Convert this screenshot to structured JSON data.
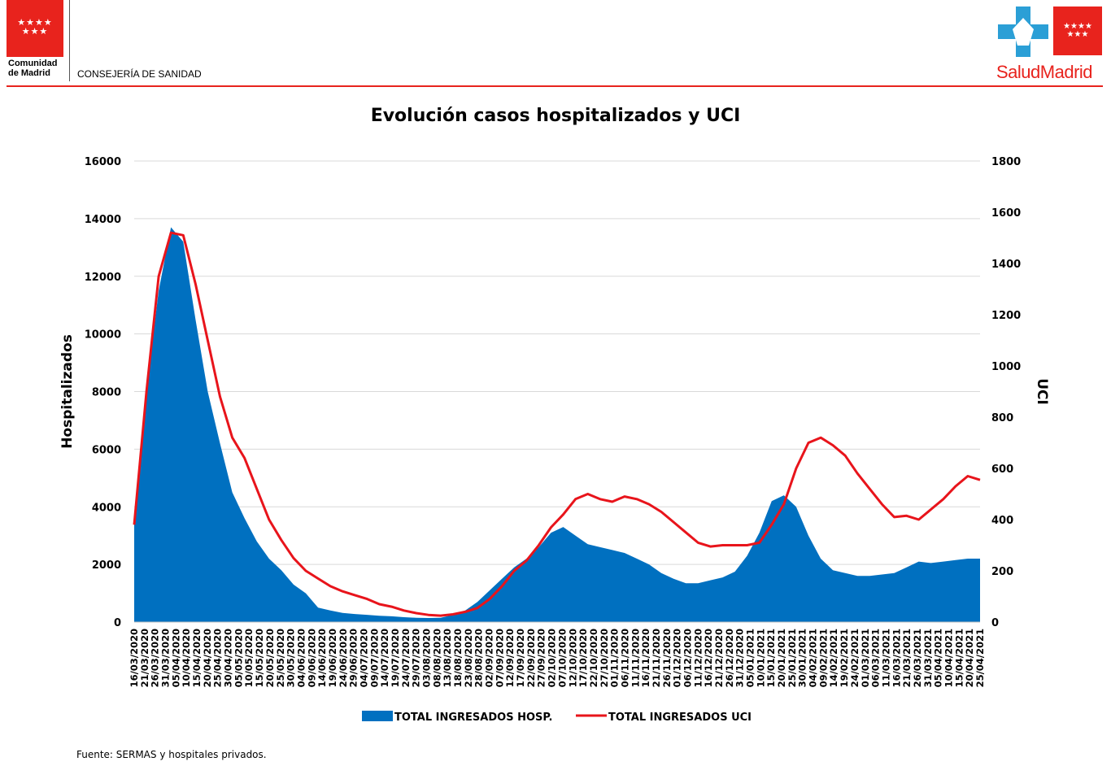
{
  "header": {
    "org_name": "Comunidad\nde Madrid",
    "department": "CONSEJERÍA DE SANIDAD",
    "logo_text": "SaludMadrid",
    "stars_left": "★★★★\n★★★",
    "stars_right": "★★★★\n★★★",
    "colors": {
      "brand_red": "#e8231d",
      "brand_blue": "#2b9fd6"
    }
  },
  "source_note": "Fuente: SERMAS y hospitales privados.",
  "chart_data": {
    "type": "area",
    "title": "Evolución casos hospitalizados y UCI",
    "ylabel": "Hospitalizados",
    "y2label": "UCI",
    "ylim": [
      0,
      16000
    ],
    "y2lim": [
      0,
      1800
    ],
    "yticks": [
      "0",
      "2000",
      "4000",
      "6000",
      "8000",
      "10000",
      "12000",
      "14000",
      "16000"
    ],
    "y2ticks": [
      "0",
      "200",
      "400",
      "600",
      "800",
      "1000",
      "1200",
      "1400",
      "1600",
      "1800"
    ],
    "grid": true,
    "legend_position": "bottom",
    "xticks": [
      "16/03/2020",
      "21/03/2020",
      "26/03/2020",
      "31/03/2020",
      "05/04/2020",
      "10/04/2020",
      "15/04/2020",
      "20/04/2020",
      "25/04/2020",
      "30/04/2020",
      "05/05/2020",
      "10/05/2020",
      "15/05/2020",
      "20/05/2020",
      "25/05/2020",
      "30/05/2020",
      "04/06/2020",
      "09/06/2020",
      "14/06/2020",
      "19/06/2020",
      "24/06/2020",
      "29/06/2020",
      "04/07/2020",
      "09/07/2020",
      "14/07/2020",
      "19/07/2020",
      "24/07/2020",
      "29/07/2020",
      "03/08/2020",
      "08/08/2020",
      "13/08/2020",
      "18/08/2020",
      "23/08/2020",
      "28/08/2020",
      "02/09/2020",
      "07/09/2020",
      "12/09/2020",
      "17/09/2020",
      "22/09/2020",
      "27/09/2020",
      "02/10/2020",
      "07/10/2020",
      "12/10/2020",
      "17/10/2020",
      "22/10/2020",
      "27/10/2020",
      "01/11/2020",
      "06/11/2020",
      "11/11/2020",
      "16/11/2020",
      "21/11/2020",
      "26/11/2020",
      "01/12/2020",
      "06/12/2020",
      "11/12/2020",
      "16/12/2020",
      "21/12/2020",
      "26/12/2020",
      "31/12/2020",
      "05/01/2021",
      "10/01/2021",
      "15/01/2021",
      "20/01/2021",
      "25/01/2021",
      "30/01/2021",
      "04/02/2021",
      "09/02/2021",
      "14/02/2021",
      "19/02/2021",
      "24/02/2021",
      "01/03/2021",
      "06/03/2021",
      "11/03/2021",
      "16/03/2021",
      "21/03/2021",
      "26/03/2021",
      "31/03/2021",
      "05/04/2021",
      "10/04/2021",
      "15/04/2021",
      "20/04/2021",
      "25/04/2021"
    ],
    "series": [
      {
        "name": "TOTAL INGRESADOS HOSP.",
        "axis": "left",
        "color": "#0070c0",
        "values": [
          3500,
          8000,
          11500,
          13700,
          13200,
          10500,
          8000,
          6200,
          4500,
          3600,
          2800,
          2200,
          1800,
          1300,
          1000,
          500,
          400,
          320,
          280,
          250,
          220,
          200,
          170,
          150,
          140,
          150,
          250,
          400,
          700,
          1100,
          1500,
          1900,
          2200,
          2600,
          3100,
          3300,
          3000,
          2700,
          2600,
          2500,
          2400,
          2200,
          2000,
          1700,
          1500,
          1350,
          1350,
          1450,
          1550,
          1750,
          2300,
          3100,
          4200,
          4400,
          4000,
          3000,
          2200,
          1800,
          1700,
          1600,
          1600,
          1650,
          1700,
          1900,
          2100,
          2050,
          2100,
          2150,
          2200,
          2200
        ]
      },
      {
        "name": "TOTAL INGRESADOS UCI",
        "axis": "right",
        "color": "#e8141b",
        "values": [
          380,
          900,
          1350,
          1520,
          1510,
          1320,
          1100,
          880,
          720,
          640,
          520,
          400,
          320,
          250,
          200,
          170,
          140,
          120,
          105,
          90,
          70,
          60,
          45,
          35,
          28,
          25,
          30,
          40,
          55,
          90,
          140,
          200,
          240,
          300,
          370,
          420,
          480,
          500,
          480,
          470,
          490,
          480,
          460,
          430,
          390,
          350,
          310,
          295,
          300,
          300,
          300,
          310,
          380,
          460,
          600,
          700,
          720,
          690,
          650,
          580,
          520,
          460,
          410,
          415,
          400,
          440,
          480,
          530,
          570,
          555
        ]
      }
    ]
  }
}
